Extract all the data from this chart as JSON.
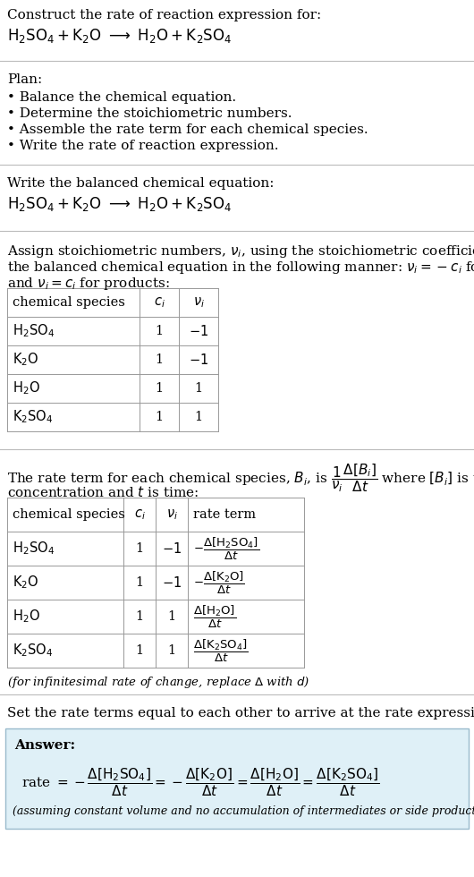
{
  "title_line1": "Construct the rate of reaction expression for:",
  "plan_header": "Plan:",
  "plan_items": [
    "• Balance the chemical equation.",
    "• Determine the stoichiometric numbers.",
    "• Assemble the rate term for each chemical species.",
    "• Write the rate of reaction expression."
  ],
  "balanced_header": "Write the balanced chemical equation:",
  "assign_text_lines": [
    "Assign stoichiometric numbers, $\\nu_i$, using the stoichiometric coefficients, $c_i$, from",
    "the balanced chemical equation in the following manner: $\\nu_i = -c_i$ for reactants",
    "and $\\nu_i = c_i$ for products:"
  ],
  "rate_line1": "The rate term for each chemical species, B$_i$, is $\\dfrac{1}{\\nu_i}\\dfrac{\\Delta[\\mathrm{B}_i]}{\\Delta t}$ where [B$_i$] is the amount",
  "rate_line2": "concentration and $t$ is time:",
  "infinitesimal_note": "(for infinitesimal rate of change, replace $\\Delta$ with $d$)",
  "set_text": "Set the rate terms equal to each other to arrive at the rate expression:",
  "answer_label": "Answer:",
  "bg_color": "#ffffff",
  "text_color": "#000000",
  "table_border_color": "#999999",
  "divider_color": "#bbbbbb",
  "answer_box_face": "#dff0f7",
  "answer_box_edge": "#99bbcc",
  "font_size_title": 11.5,
  "font_size_body": 11.0,
  "font_size_table": 10.5,
  "font_size_small": 9.5
}
